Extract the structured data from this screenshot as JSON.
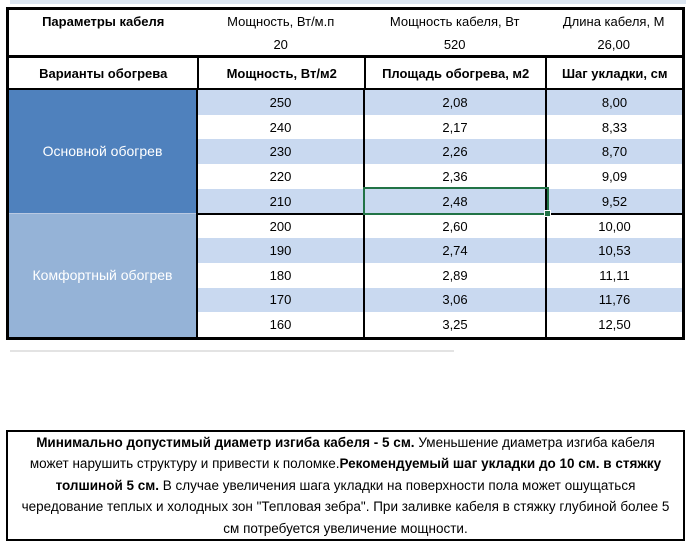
{
  "params": {
    "title": "Параметры кабеля",
    "cols": [
      {
        "label": "Мощность, Вт/м.п",
        "value": "20"
      },
      {
        "label": "Мощность кабеля, Вт",
        "value": "520"
      },
      {
        "label": "Длина кабеля, М",
        "value": "26,00"
      }
    ]
  },
  "header_row": [
    "Варианты обогрева",
    "Мощность, Вт/м2",
    "Площадь обогрева, м2",
    "Шаг укладки, см"
  ],
  "groups": [
    {
      "label": "Основной обогрев",
      "rows": [
        [
          "250",
          "2,08",
          "8,00"
        ],
        [
          "240",
          "2,17",
          "8,33"
        ],
        [
          "230",
          "2,26",
          "8,70"
        ],
        [
          "220",
          "2,36",
          "9,09"
        ],
        [
          "210",
          "2,48",
          "9,52"
        ]
      ]
    },
    {
      "label": "Комфортный обогрев",
      "rows": [
        [
          "200",
          "2,60",
          "10,00"
        ],
        [
          "190",
          "2,74",
          "10,53"
        ],
        [
          "180",
          "2,89",
          "11,11"
        ],
        [
          "170",
          "3,06",
          "11,76"
        ],
        [
          "160",
          "3,25",
          "12,50"
        ]
      ]
    }
  ],
  "selection": {
    "value": "2,48",
    "row_power": "210",
    "column": "Площадь обогрева, м2",
    "border_color": "#217346"
  },
  "note": {
    "segments": [
      {
        "bold": true,
        "text": "Минимально допустимый диаметр изгиба кабеля - 5 см."
      },
      {
        "bold": false,
        "text": " Уменьшение диаметра изгиба кабеля может нарушить структуру и привести к поломке."
      },
      {
        "bold": true,
        "text": "Рекомендуемый шаг укладки до 10 см. в стяжку толшиной 5 см."
      },
      {
        "bold": false,
        "text": " В  случае увеличения шага укладки на поверхности пола может ошущаться чередование теплых и холодных зон \"Тепловая зебра\". При заливке кабеля в стяжку глубиной более 5 см потребуется увеличение мощности."
      }
    ]
  },
  "colors": {
    "group_main_bg": "#4F81BD",
    "group_comfort_bg": "#95B3D7",
    "row_band_bg": "#C9D9F0",
    "selection_border": "#217346",
    "grid_border": "#000000"
  }
}
